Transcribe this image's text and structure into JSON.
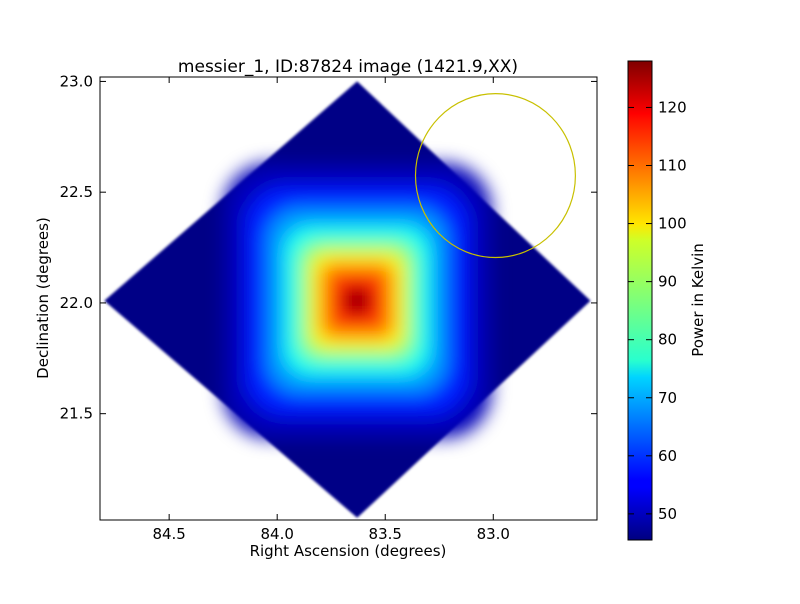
{
  "chart_data": {
    "type": "heatmap",
    "title": "messier_1, ID:87824 image (1421.9,XX)",
    "xlabel": "Right Ascension (degrees)",
    "ylabel": "Declination (degrees)",
    "xlim": [
      84.82,
      82.52
    ],
    "ylim": [
      21.02,
      23.02
    ],
    "x_ticks": [
      84.5,
      84.0,
      83.5,
      83.0
    ],
    "x_tick_labels": [
      "84.5",
      "84.0",
      "83.5",
      "83.0"
    ],
    "y_ticks": [
      21.5,
      22.0,
      22.5,
      23.0
    ],
    "y_tick_labels": [
      "21.5",
      "22.0",
      "22.5",
      "23.0"
    ],
    "grid": false,
    "map_center": {
      "ra": 83.63,
      "dec": 22.01
    },
    "map_peak": {
      "ra": 83.63,
      "dec": 22.01,
      "value": 128
    },
    "map_corners": [
      {
        "ra": 83.63,
        "dec": 23.0
      },
      {
        "ra": 82.55,
        "dec": 22.01
      },
      {
        "ra": 83.63,
        "dec": 21.03
      },
      {
        "ra": 84.8,
        "dec": 22.01
      }
    ],
    "contour_levels": [
      {
        "value": 118,
        "half_width_deg": 0.11
      },
      {
        "value": 108,
        "half_width_deg": 0.17
      },
      {
        "value": 98,
        "half_width_deg": 0.22
      },
      {
        "value": 88,
        "half_width_deg": 0.27
      },
      {
        "value": 78,
        "half_width_deg": 0.34
      },
      {
        "value": 68,
        "half_width_deg": 0.42
      },
      {
        "value": 58,
        "half_width_deg": 0.52
      },
      {
        "value": 50,
        "half_width_deg": 0.62
      }
    ],
    "background_value": 46,
    "circle": {
      "ra": 82.99,
      "dec": 22.575,
      "radius_deg": 0.37,
      "color": "#c8c000"
    },
    "colorbar": {
      "label": "Power in Kelvin",
      "range": [
        45.5,
        128
      ],
      "ticks": [
        50,
        60,
        70,
        80,
        90,
        100,
        110,
        120
      ],
      "tick_labels": [
        "50",
        "60",
        "70",
        "80",
        "90",
        "100",
        "110",
        "120"
      ],
      "colormap": "jet"
    }
  }
}
